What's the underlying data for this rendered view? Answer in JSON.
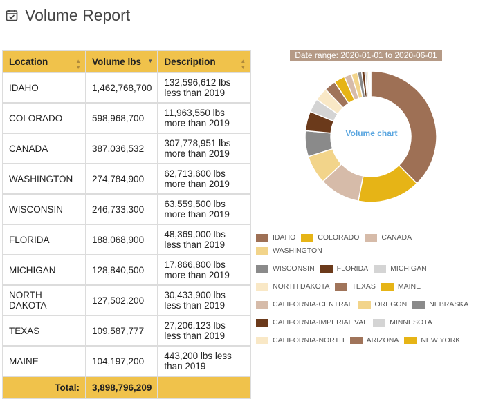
{
  "header": {
    "title": "Volume Report",
    "icon": "calendar-check-icon"
  },
  "table": {
    "columns": [
      "Location",
      "Volume lbs",
      "Description"
    ],
    "rows": [
      {
        "location": "IDAHO",
        "volume": "1,462,768,700",
        "description": "132,596,612 lbs less than 2019"
      },
      {
        "location": "COLORADO",
        "volume": "598,968,700",
        "description": "11,963,550 lbs more than 2019"
      },
      {
        "location": "CANADA",
        "volume": "387,036,532",
        "description": "307,778,951 lbs more than 2019"
      },
      {
        "location": "WASHINGTON",
        "volume": "274,784,900",
        "description": "62,713,600 lbs more than 2019"
      },
      {
        "location": "WISCONSIN",
        "volume": "246,733,300",
        "description": "63,559,500 lbs more than 2019"
      },
      {
        "location": "FLORIDA",
        "volume": "188,068,900",
        "description": "48,369,000 lbs less than 2019"
      },
      {
        "location": "MICHIGAN",
        "volume": "128,840,500",
        "description": "17,866,800 lbs more than 2019"
      },
      {
        "location": "NORTH DAKOTA",
        "volume": "127,502,200",
        "description": "30,433,900 lbs less than 2019"
      },
      {
        "location": "TEXAS",
        "volume": "109,587,777",
        "description": "27,206,123 lbs less than 2019"
      },
      {
        "location": "MAINE",
        "volume": "104,197,200",
        "description": "443,200 lbs less than 2019"
      }
    ],
    "total_label": "Total:",
    "total_value": "3,898,796,209"
  },
  "chart": {
    "date_range": "Date range: 2020-01-01 to 2020-06-01",
    "center_label": "Volume chart"
  },
  "chart_data": {
    "type": "pie",
    "categories": [
      "IDAHO",
      "COLORADO",
      "CANADA",
      "WASHINGTON",
      "WISCONSIN",
      "FLORIDA",
      "MICHIGAN",
      "NORTH DAKOTA",
      "TEXAS",
      "MAINE",
      "CALIFORNIA-CENTRAL",
      "OREGON",
      "NEBRASKA",
      "CALIFORNIA-IMPERIAL VAL",
      "MINNESOTA",
      "CALIFORNIA-NORTH",
      "ARIZONA",
      "NEW YORK"
    ],
    "values": [
      1462768700,
      598968700,
      387036532,
      274784900,
      246733300,
      188068900,
      128840500,
      127502200,
      109587777,
      104197200,
      70000000,
      60000000,
      40000000,
      30000000,
      20000000,
      15000000,
      12000000,
      10000000
    ],
    "colors": [
      "#9e7055",
      "#e6b416",
      "#d6bba9",
      "#f2d48a",
      "#8a8a8a",
      "#6b3a1b",
      "#d4d4d4",
      "#f9e8c6",
      "#a0745a",
      "#e6b416",
      "#d6bba9",
      "#f2d48a",
      "#8a8a8a",
      "#6b3a1b",
      "#d4d4d4",
      "#f9e8c6",
      "#a0745a",
      "#e6b416"
    ],
    "legend_position": "bottom"
  }
}
